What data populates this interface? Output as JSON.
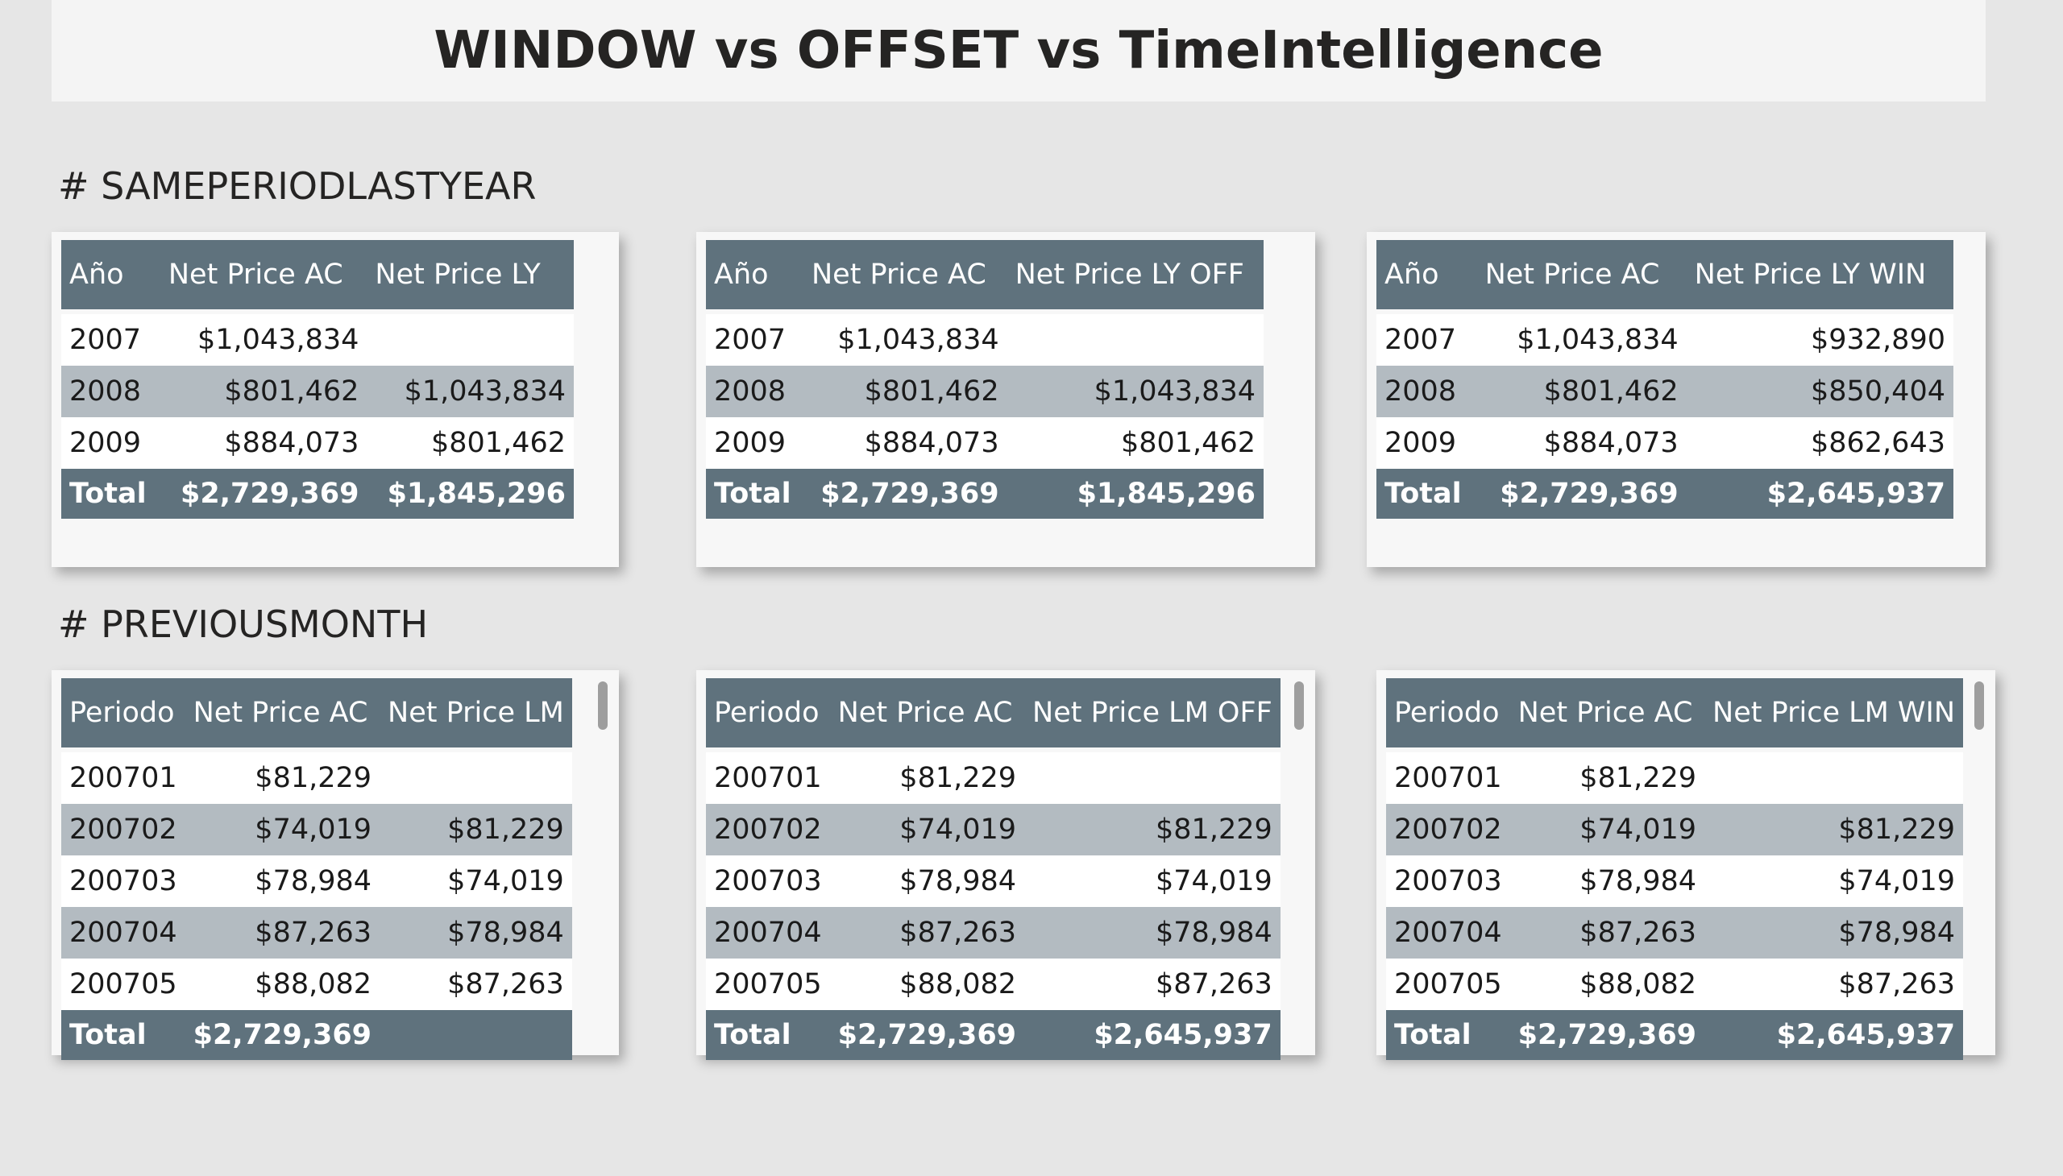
{
  "title": "WINDOW vs OFFSET vs TimeIntelligence",
  "sections": [
    {
      "label": "# SAMEPERIODLASTYEAR",
      "tables": [
        {
          "headers": [
            "Año",
            "Net Price AC",
            "Net Price LY"
          ],
          "rows": [
            [
              "2007",
              "$1,043,834",
              ""
            ],
            [
              "2008",
              "$801,462",
              "$1,043,834"
            ],
            [
              "2009",
              "$884,073",
              "$801,462"
            ]
          ],
          "total": [
            "Total",
            "$2,729,369",
            "$1,845,296"
          ]
        },
        {
          "headers": [
            "Año",
            "Net Price AC",
            "Net Price LY OFF"
          ],
          "rows": [
            [
              "2007",
              "$1,043,834",
              ""
            ],
            [
              "2008",
              "$801,462",
              "$1,043,834"
            ],
            [
              "2009",
              "$884,073",
              "$801,462"
            ]
          ],
          "total": [
            "Total",
            "$2,729,369",
            "$1,845,296"
          ]
        },
        {
          "headers": [
            "Año",
            "Net Price AC",
            "Net Price LY WIN"
          ],
          "rows": [
            [
              "2007",
              "$1,043,834",
              "$932,890"
            ],
            [
              "2008",
              "$801,462",
              "$850,404"
            ],
            [
              "2009",
              "$884,073",
              "$862,643"
            ]
          ],
          "total": [
            "Total",
            "$2,729,369",
            "$2,645,937"
          ]
        }
      ]
    },
    {
      "label": "# PREVIOUSMONTH",
      "tables": [
        {
          "headers": [
            "Periodo",
            "Net Price AC",
            "Net Price LM"
          ],
          "rows": [
            [
              "200701",
              "$81,229",
              ""
            ],
            [
              "200702",
              "$74,019",
              "$81,229"
            ],
            [
              "200703",
              "$78,984",
              "$74,019"
            ],
            [
              "200704",
              "$87,263",
              "$78,984"
            ],
            [
              "200705",
              "$88,082",
              "$87,263"
            ]
          ],
          "total": [
            "Total",
            "$2,729,369",
            ""
          ]
        },
        {
          "headers": [
            "Periodo",
            "Net Price AC",
            "Net Price LM OFF"
          ],
          "rows": [
            [
              "200701",
              "$81,229",
              ""
            ],
            [
              "200702",
              "$74,019",
              "$81,229"
            ],
            [
              "200703",
              "$78,984",
              "$74,019"
            ],
            [
              "200704",
              "$87,263",
              "$78,984"
            ],
            [
              "200705",
              "$88,082",
              "$87,263"
            ]
          ],
          "total": [
            "Total",
            "$2,729,369",
            "$2,645,937"
          ]
        },
        {
          "headers": [
            "Periodo",
            "Net Price AC",
            "Net Price LM WIN"
          ],
          "rows": [
            [
              "200701",
              "$81,229",
              ""
            ],
            [
              "200702",
              "$74,019",
              "$81,229"
            ],
            [
              "200703",
              "$78,984",
              "$74,019"
            ],
            [
              "200704",
              "$87,263",
              "$78,984"
            ],
            [
              "200705",
              "$88,082",
              "$87,263"
            ]
          ],
          "total": [
            "Total",
            "$2,729,369",
            "$2,645,937"
          ]
        }
      ]
    }
  ]
}
